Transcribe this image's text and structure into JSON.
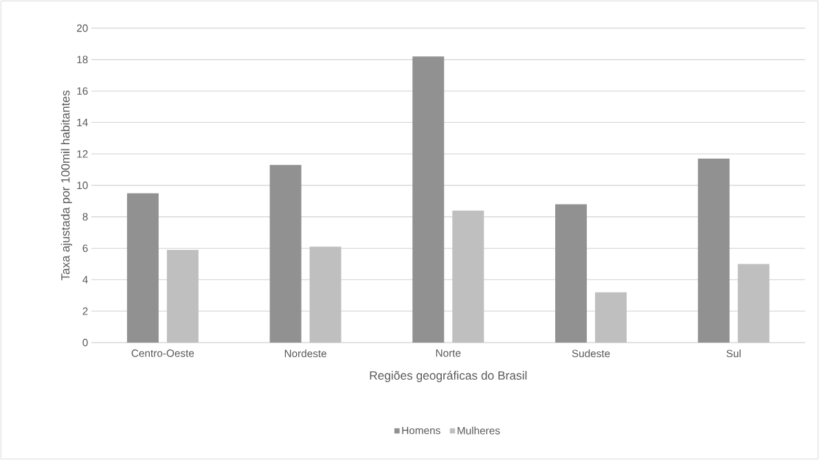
{
  "chart_data": {
    "type": "bar",
    "xlabel": "Regiões geográficas do Brasil",
    "ylabel": "Taxa ajustada por 100mil habitantes",
    "categories": [
      "Centro-Oeste",
      "Nordeste",
      "Norte",
      "Sudeste",
      "Sul"
    ],
    "series": [
      {
        "name": "Homens",
        "color": "#919191",
        "values": [
          9.5,
          11.3,
          18.2,
          8.8,
          11.7
        ]
      },
      {
        "name": "Mulheres",
        "color": "#bfbfbf",
        "values": [
          5.9,
          6.1,
          8.4,
          3.2,
          5.0
        ]
      }
    ],
    "ylim": [
      0,
      20
    ],
    "yticks": [
      0,
      2,
      4,
      6,
      8,
      10,
      12,
      14,
      16,
      18,
      20
    ],
    "grid": "y",
    "legend": "bottom"
  }
}
